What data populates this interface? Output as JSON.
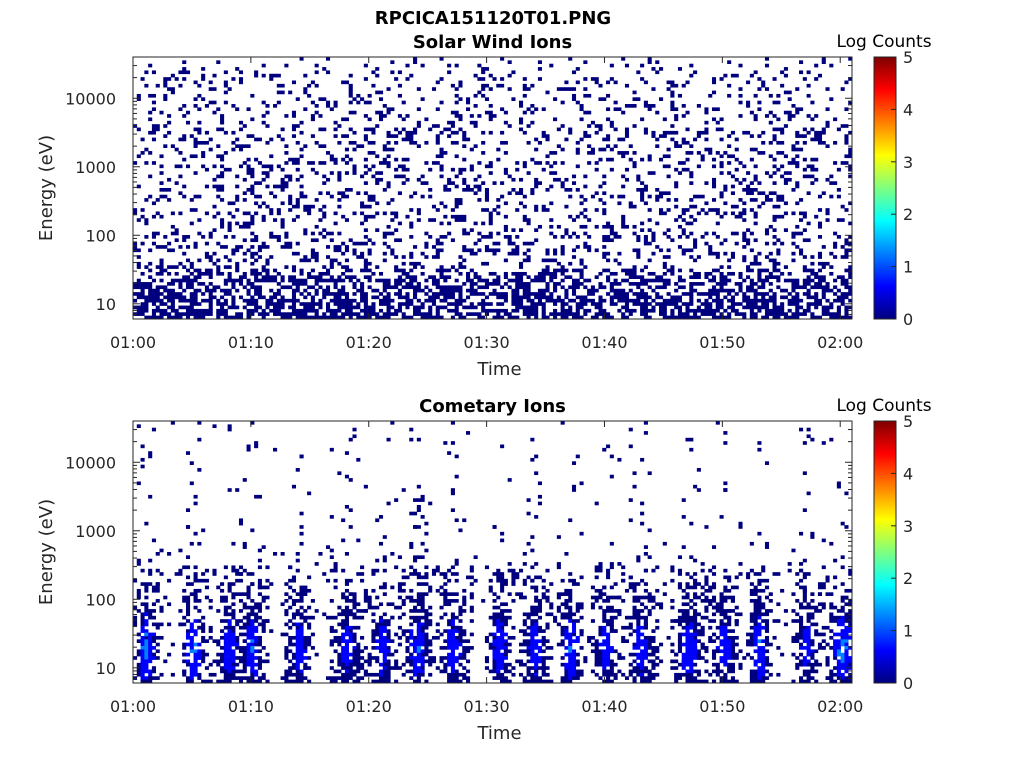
{
  "figure": {
    "title": "RPCICA151120T01.PNG"
  },
  "colormap": [
    "#00007f",
    "#0000ff",
    "#007fff",
    "#00ffff",
    "#7fff7f",
    "#ffff00",
    "#ff7f00",
    "#ff0000",
    "#7f0000"
  ],
  "chart_data": [
    {
      "type": "heatmap",
      "title": "Solar Wind Ions",
      "xlabel": "Time",
      "ylabel": "Energy (eV)",
      "x_ticks": [
        "01:00",
        "01:10",
        "01:20",
        "01:30",
        "01:40",
        "01:50",
        "02:00"
      ],
      "x_range": [
        "01:00",
        "02:01"
      ],
      "y_scale": "log",
      "y_ticks": [
        "10",
        "100",
        "1000",
        "10000"
      ],
      "y_range": [
        6,
        40000
      ],
      "colorbar": {
        "label": "Log Counts",
        "range": [
          0,
          5
        ],
        "ticks": [
          "0",
          "1",
          "2",
          "3",
          "4",
          "5"
        ]
      },
      "description": "Sparse scattered low-count pixels (log counts ~0–0.3) across all energies 6–40000 eV for the full interval; denser near 10–40 eV."
    },
    {
      "type": "heatmap",
      "title": "Cometary Ions",
      "xlabel": "Time",
      "ylabel": "Energy (eV)",
      "x_ticks": [
        "01:00",
        "01:10",
        "01:20",
        "01:30",
        "01:40",
        "01:50",
        "02:00"
      ],
      "x_range": [
        "01:00",
        "02:01"
      ],
      "y_scale": "log",
      "y_ticks": [
        "10",
        "100",
        "1000",
        "10000"
      ],
      "y_range": [
        6,
        40000
      ],
      "colorbar": {
        "label": "Log Counts",
        "range": [
          0,
          5
        ],
        "ticks": [
          "0",
          "1",
          "2",
          "3",
          "4",
          "5"
        ]
      },
      "bursts": [
        {
          "time": "01:01",
          "max_log_counts": 1.8
        },
        {
          "time": "01:05",
          "max_log_counts": 1.6
        },
        {
          "time": "01:08",
          "max_log_counts": 1.0
        },
        {
          "time": "01:10",
          "max_log_counts": 1.3
        },
        {
          "time": "01:14",
          "max_log_counts": 1.0
        },
        {
          "time": "01:18",
          "max_log_counts": 0.9
        },
        {
          "time": "01:21",
          "max_log_counts": 1.0
        },
        {
          "time": "01:24",
          "max_log_counts": 1.1
        },
        {
          "time": "01:27",
          "max_log_counts": 1.0
        },
        {
          "time": "01:31",
          "max_log_counts": 1.1
        },
        {
          "time": "01:34",
          "max_log_counts": 0.9
        },
        {
          "time": "01:37",
          "max_log_counts": 1.4
        },
        {
          "time": "01:40",
          "max_log_counts": 1.0
        },
        {
          "time": "01:43",
          "max_log_counts": 0.9
        },
        {
          "time": "01:47",
          "max_log_counts": 1.0
        },
        {
          "time": "01:50",
          "max_log_counts": 0.9
        },
        {
          "time": "01:53",
          "max_log_counts": 1.3
        },
        {
          "time": "01:57",
          "max_log_counts": 0.9
        },
        {
          "time": "02:00",
          "max_log_counts": 1.7
        }
      ]
    }
  ]
}
